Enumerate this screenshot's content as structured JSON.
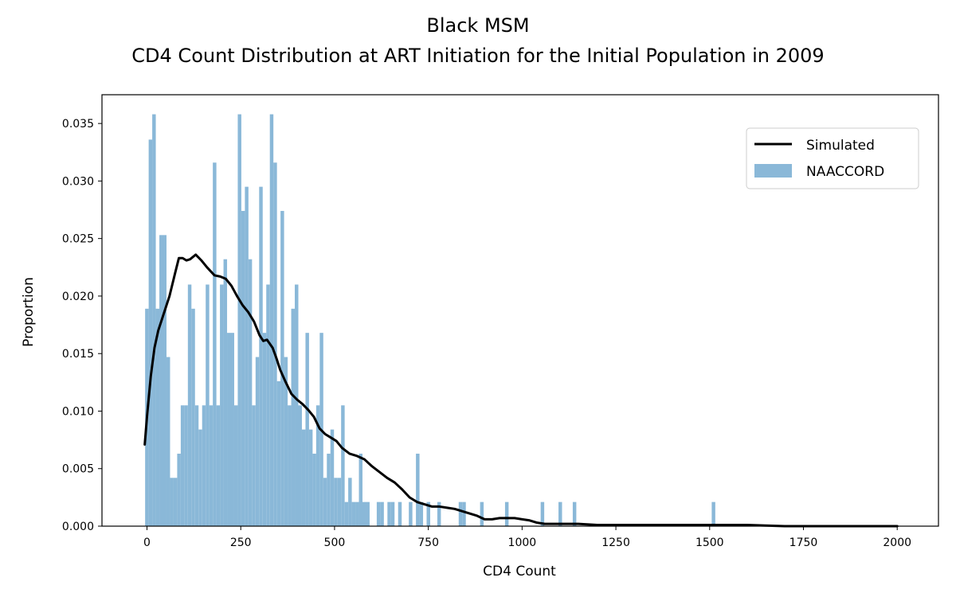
{
  "chart_data": {
    "type": "bar",
    "title_lines": [
      "Black MSM",
      "CD4 Count Distribution at ART Initiation for the Initial Population in 2009"
    ],
    "xlabel": "CD4 Count",
    "ylabel": "Proportion",
    "xlim": [
      -120,
      2110
    ],
    "ylim": [
      0,
      0.0375
    ],
    "x_ticks": [
      0,
      250,
      500,
      750,
      1000,
      1250,
      1500,
      1750,
      2000
    ],
    "x_tick_labels": [
      "0",
      "250",
      "500",
      "750",
      "1000",
      "1250",
      "1500",
      "1750",
      "2000"
    ],
    "y_ticks": [
      0,
      0.005,
      0.01,
      0.015,
      0.02,
      0.025,
      0.03,
      0.035
    ],
    "y_tick_labels": [
      "0.000",
      "0.005",
      "0.010",
      "0.015",
      "0.020",
      "0.025",
      "0.030",
      "0.035"
    ],
    "legend": {
      "position": "top-right",
      "entries": [
        "Simulated",
        "NAACCORD"
      ]
    },
    "colors": {
      "histogram": "#8ab8d8",
      "line": "#000000"
    },
    "histogram": {
      "name": "NAACCORD",
      "bin_width": 9.5,
      "bins_start": [
        -5,
        4.5,
        14,
        23.5,
        33,
        42.5,
        52,
        61.5,
        71,
        80.5,
        90,
        99.5,
        109,
        118.5,
        128,
        137.5,
        147,
        156.5,
        166,
        175.5,
        185,
        194.5,
        204,
        213.5,
        223,
        232.5,
        242,
        251.5,
        261,
        270.5,
        280,
        289.5,
        299,
        308.5,
        318,
        327.5,
        337,
        346.5,
        356,
        365.5,
        375,
        384.5,
        394,
        403.5,
        413,
        422.5,
        432,
        441.5,
        451,
        460.5,
        470,
        479.5,
        489,
        498.5,
        508,
        517.5,
        527,
        536.5,
        546,
        555.5,
        565,
        574.5,
        584,
        612.5,
        622,
        641,
        650.5,
        669.5,
        698,
        717,
        726.5,
        745.5,
        774,
        831,
        840.5,
        888,
        954.5,
        1049.5,
        1097,
        1135,
        1505.5
      ],
      "values": [
        0.0189,
        0.0336,
        0.0358,
        0.0189,
        0.0253,
        0.0253,
        0.0147,
        0.0042,
        0.0042,
        0.0063,
        0.0105,
        0.0105,
        0.021,
        0.0189,
        0.0105,
        0.0084,
        0.0105,
        0.021,
        0.0105,
        0.0316,
        0.0105,
        0.021,
        0.0232,
        0.0168,
        0.0168,
        0.0105,
        0.0358,
        0.0274,
        0.0295,
        0.0232,
        0.0105,
        0.0147,
        0.0295,
        0.0168,
        0.021,
        0.0358,
        0.0316,
        0.0126,
        0.0274,
        0.0147,
        0.0105,
        0.0189,
        0.021,
        0.0105,
        0.0084,
        0.0168,
        0.0084,
        0.0063,
        0.0105,
        0.0168,
        0.0042,
        0.0063,
        0.0084,
        0.0042,
        0.0042,
        0.0105,
        0.0021,
        0.0042,
        0.0021,
        0.0021,
        0.0063,
        0.0021,
        0.0021,
        0.0021,
        0.0021,
        0.0021,
        0.0021,
        0.0021,
        0.0021,
        0.0063,
        0.0021,
        0.0021,
        0.0021,
        0.0021,
        0.0021,
        0.0021,
        0.0021,
        0.0021,
        0.0021,
        0.0021,
        0.0021
      ]
    },
    "series": [
      {
        "name": "Simulated",
        "x": [
          -6,
          0,
          10,
          20,
          30,
          45,
          60,
          75,
          85,
          95,
          105,
          115,
          130,
          145,
          160,
          180,
          195,
          210,
          225,
          240,
          255,
          270,
          285,
          300,
          310,
          320,
          335,
          345,
          355,
          370,
          385,
          400,
          415,
          430,
          445,
          460,
          475,
          490,
          505,
          520,
          540,
          560,
          580,
          600,
          620,
          640,
          660,
          680,
          700,
          720,
          740,
          760,
          780,
          800,
          820,
          840,
          860,
          880,
          900,
          920,
          940,
          960,
          980,
          1000,
          1020,
          1040,
          1060,
          1080,
          1100,
          1150,
          1200,
          1300,
          1400,
          1500,
          1600,
          1700,
          1800,
          1900,
          2000
        ],
        "y": [
          0.0071,
          0.0095,
          0.013,
          0.0155,
          0.017,
          0.0185,
          0.02,
          0.022,
          0.0233,
          0.0233,
          0.0231,
          0.0232,
          0.0236,
          0.0231,
          0.0225,
          0.0218,
          0.0217,
          0.0215,
          0.0209,
          0.02,
          0.0192,
          0.0186,
          0.0178,
          0.0166,
          0.0161,
          0.0162,
          0.0155,
          0.0146,
          0.0136,
          0.0125,
          0.0115,
          0.011,
          0.0106,
          0.0101,
          0.0095,
          0.0085,
          0.008,
          0.0077,
          0.0074,
          0.0068,
          0.0063,
          0.0061,
          0.0058,
          0.0052,
          0.0047,
          0.0042,
          0.0038,
          0.0032,
          0.0025,
          0.0021,
          0.0019,
          0.0017,
          0.0017,
          0.0016,
          0.0015,
          0.0013,
          0.0011,
          0.0009,
          0.0006,
          0.0006,
          0.0007,
          0.0007,
          0.0007,
          0.0006,
          0.0005,
          0.0003,
          0.0002,
          0.0002,
          0.0002,
          0.0002,
          0.0001,
          0.0001,
          0.0001,
          0.0001,
          0.0001,
          0,
          0,
          0,
          0
        ]
      }
    ]
  }
}
